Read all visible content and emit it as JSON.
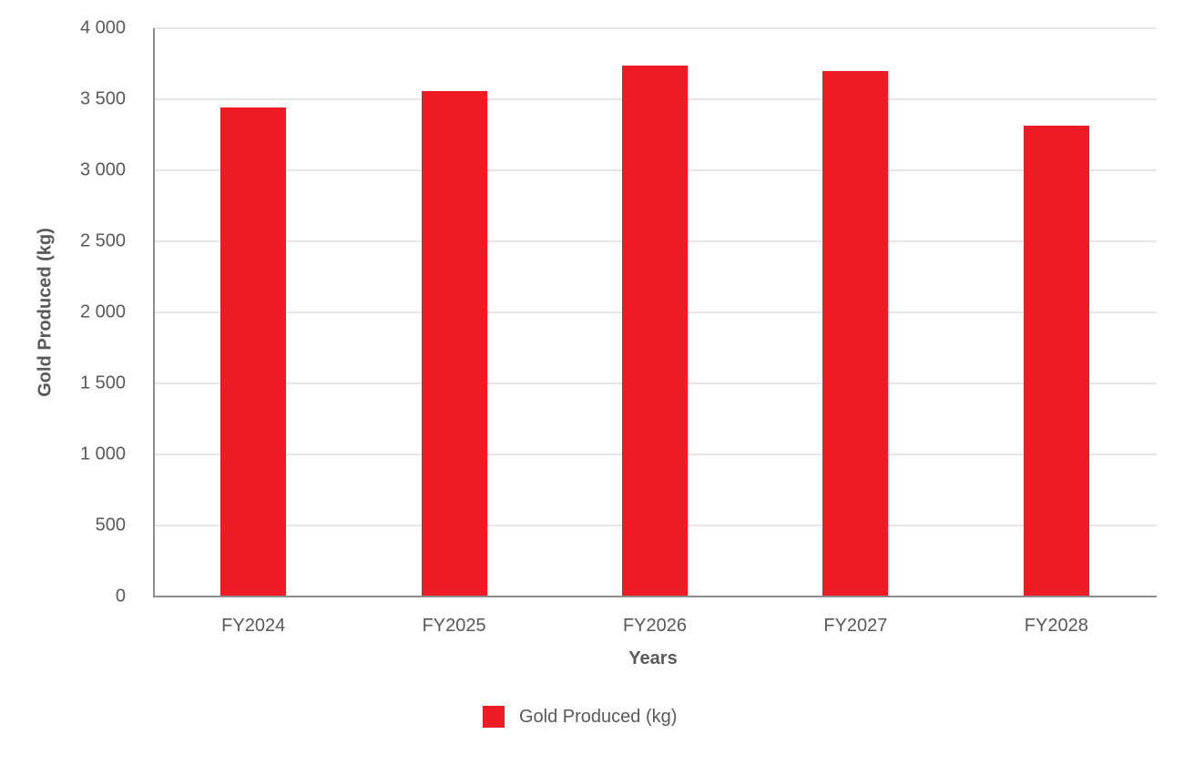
{
  "chart_data": {
    "type": "bar",
    "title": "",
    "xlabel": "Years",
    "ylabel": "Gold Produced (kg)",
    "categories": [
      "FY2024",
      "FY2025",
      "FY2026",
      "FY2027",
      "FY2028"
    ],
    "series": [
      {
        "name": "Gold Produced (kg)",
        "color": "#ed1c24",
        "values": [
          3440,
          3560,
          3740,
          3700,
          3315
        ]
      }
    ],
    "ylim": [
      0,
      4000
    ],
    "yticks": [
      0,
      500,
      1000,
      1500,
      2000,
      2500,
      3000,
      3500,
      4000
    ],
    "ytick_labels": [
      "0",
      "500",
      "1 000",
      "1 500",
      "2 000",
      "2 500",
      "3 000",
      "3 500",
      "4 000"
    ],
    "grid": true,
    "legend_position": "bottom"
  },
  "axes": {
    "y_title": "Gold Produced (kg)",
    "x_title": "Years"
  },
  "legend": {
    "label": "Gold Produced (kg)",
    "color": "#ed1c24"
  }
}
